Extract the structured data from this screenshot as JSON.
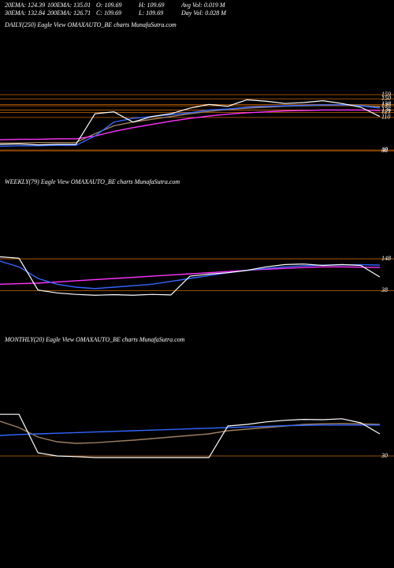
{
  "header": {
    "stats": [
      [
        "20EMA: 124.39",
        "100EMA: 135.01",
        "O: 109.69",
        "H: 109.69",
        "Avg Vol: 0.019 M"
      ],
      [
        "30EMA: 132.84",
        "200EMA: 126.71",
        "C: 109.69",
        "L: 109.69",
        "Day Vol: 0.028 M"
      ]
    ]
  },
  "chart_data": [
    {
      "type": "line",
      "title": "DAILY(250) Eagle  View  OMAXAUTO_BE charts MunafaSutra.com",
      "x": [
        0,
        5,
        10,
        15,
        20,
        25,
        30,
        35,
        40,
        45,
        50,
        55,
        60,
        65,
        70,
        75,
        80,
        85,
        90,
        95,
        100
      ],
      "xlim": [
        0,
        100
      ],
      "ylim": [
        30,
        170
      ],
      "yticks": [
        159,
        150,
        138,
        135,
        126,
        121,
        110,
        40,
        38
      ],
      "grid": true,
      "grid_color": "#cc6600",
      "series": [
        {
          "color": "#a08060",
          "values": [
            55,
            55,
            56,
            56,
            56,
            75,
            92,
            100,
            106,
            112,
            118,
            123,
            127,
            130,
            132,
            134,
            135,
            136,
            137,
            136,
            133
          ]
        },
        {
          "color": "#ff33ff",
          "values": [
            62,
            63,
            63,
            64,
            64,
            70,
            80,
            88,
            95,
            102,
            108,
            113,
            117,
            120,
            122,
            124,
            125,
            126,
            126,
            126,
            125
          ]
        },
        {
          "color": "#3366ff",
          "values": [
            48,
            49,
            49,
            50,
            50,
            70,
            100,
            108,
            112,
            116,
            120,
            126,
            128,
            132,
            134,
            135,
            136,
            137,
            137,
            135,
            130
          ]
        },
        {
          "color": "#ffffff",
          "values": [
            52,
            53,
            51,
            52,
            52,
            118,
            122,
            100,
            112,
            118,
            130,
            138,
            134,
            148,
            145,
            140,
            142,
            146,
            140,
            132,
            112
          ]
        }
      ]
    },
    {
      "type": "line",
      "title": "WEEKLY(79) Eagle  View  OMAXAUTO_BE charts MunafaSutra.com",
      "x": [
        0,
        5,
        10,
        15,
        20,
        25,
        30,
        35,
        40,
        45,
        50,
        55,
        60,
        65,
        70,
        75,
        80,
        85,
        90,
        95,
        100
      ],
      "xlim": [
        0,
        100
      ],
      "ylim": [
        20,
        170
      ],
      "yticks": [
        148,
        38
      ],
      "grid": true,
      "grid_color": "#cc6600",
      "series": [
        {
          "color": "#ff33ff",
          "values": [
            60,
            62,
            64,
            68,
            72,
            76,
            80,
            84,
            88,
            92,
            96,
            100,
            104,
            108,
            112,
            115,
            118,
            120,
            120,
            119,
            118
          ]
        },
        {
          "color": "#3366ff",
          "values": [
            140,
            120,
            80,
            60,
            50,
            45,
            50,
            55,
            60,
            70,
            80,
            90,
            100,
            108,
            115,
            120,
            124,
            126,
            127,
            128,
            126
          ]
        },
        {
          "color": "#ffffff",
          "values": [
            155,
            150,
            40,
            30,
            25,
            22,
            24,
            22,
            25,
            23,
            88,
            95,
            100,
            108,
            120,
            128,
            130,
            125,
            128,
            125,
            85
          ]
        }
      ]
    },
    {
      "type": "line",
      "title": "MONTHLY(20) Eagle  View  OMAXAUTO_BE charts MunafaSutra.com",
      "x": [
        0,
        5,
        10,
        15,
        20,
        25,
        30,
        35,
        40,
        45,
        50,
        55,
        60,
        65,
        70,
        75,
        80,
        85,
        90,
        95,
        100
      ],
      "xlim": [
        0,
        100
      ],
      "ylim": [
        0,
        200
      ],
      "yticks": [
        30
      ],
      "grid": true,
      "grid_color": "#cc6600",
      "series": [
        {
          "color": "#a08060",
          "values": [
            140,
            120,
            90,
            75,
            70,
            72,
            76,
            80,
            85,
            90,
            95,
            100,
            110,
            115,
            120,
            125,
            130,
            132,
            133,
            132,
            130
          ]
        },
        {
          "color": "#3366ff",
          "values": [
            95,
            98,
            100,
            102,
            104,
            106,
            108,
            110,
            112,
            114,
            116,
            118,
            120,
            122,
            124,
            126,
            127,
            128,
            128,
            128,
            128
          ]
        },
        {
          "color": "#ffffff",
          "values": [
            162,
            162,
            40,
            30,
            28,
            25,
            25,
            25,
            25,
            25,
            25,
            25,
            125,
            130,
            138,
            143,
            146,
            145,
            148,
            135,
            100
          ]
        }
      ]
    }
  ]
}
